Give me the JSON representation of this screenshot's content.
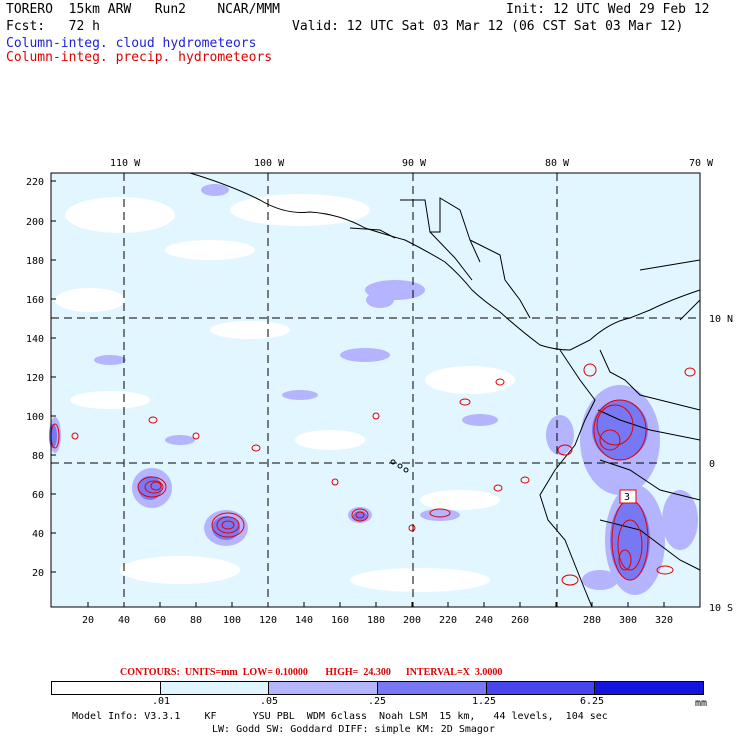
{
  "header": {
    "line1_left": "TORERO  15km ARW   Run2    NCAR/MMM",
    "line1_right": "Init: 12 UTC Wed 29 Feb 12",
    "line2_left": "Fcst:   72 h",
    "line2_right": "Valid: 12 UTC Sat 03 Mar 12 (06 CST Sat 03 Mar 12)",
    "legend_cloud": "Column-integ. cloud hydrometeors",
    "legend_precip": "Column-integ. precip. hydrometeors",
    "legend_cloud_color": "#1f1fd6",
    "legend_precip_color": "#e00000"
  },
  "map": {
    "lon_labels": [
      "110 W",
      "100 W",
      "90 W",
      "80 W",
      "70 W"
    ],
    "lat_labels": [
      "10 N",
      "0",
      "10 S"
    ],
    "y_ticks": [
      "220",
      "200",
      "180",
      "160",
      "140",
      "120",
      "100",
      "80",
      "60",
      "40",
      "20"
    ],
    "x_ticks": [
      "20",
      "40",
      "60",
      "80",
      "100",
      "120",
      "140",
      "160",
      "180",
      "200",
      "220",
      "240",
      "260",
      "280",
      "300",
      "320"
    ],
    "contour_color": "#e00000",
    "high_label": "3"
  },
  "contours_line": {
    "label": "CONTOURS:  UNITS=mm  LOW= 0.10000       HIGH=  24.300      INTERVAL=X  3.0000"
  },
  "colorbar": {
    "levels": [
      ".01",
      ".05",
      ".25",
      "1.25",
      "6.25"
    ],
    "unit": "mm",
    "colors": [
      "#ffffff",
      "#dff5ff",
      "#b4b4ff",
      "#7878f5",
      "#4646ec",
      "#1414e0"
    ]
  },
  "model_info": {
    "line1": "Model Info: V3.3.1    KF      YSU PBL  WDM 6class  Noah LSM  15 km,   44 levels,  104 sec",
    "line2": "LW: Godd SW: Goddard DIFF: simple KM: 2D Smagor"
  }
}
